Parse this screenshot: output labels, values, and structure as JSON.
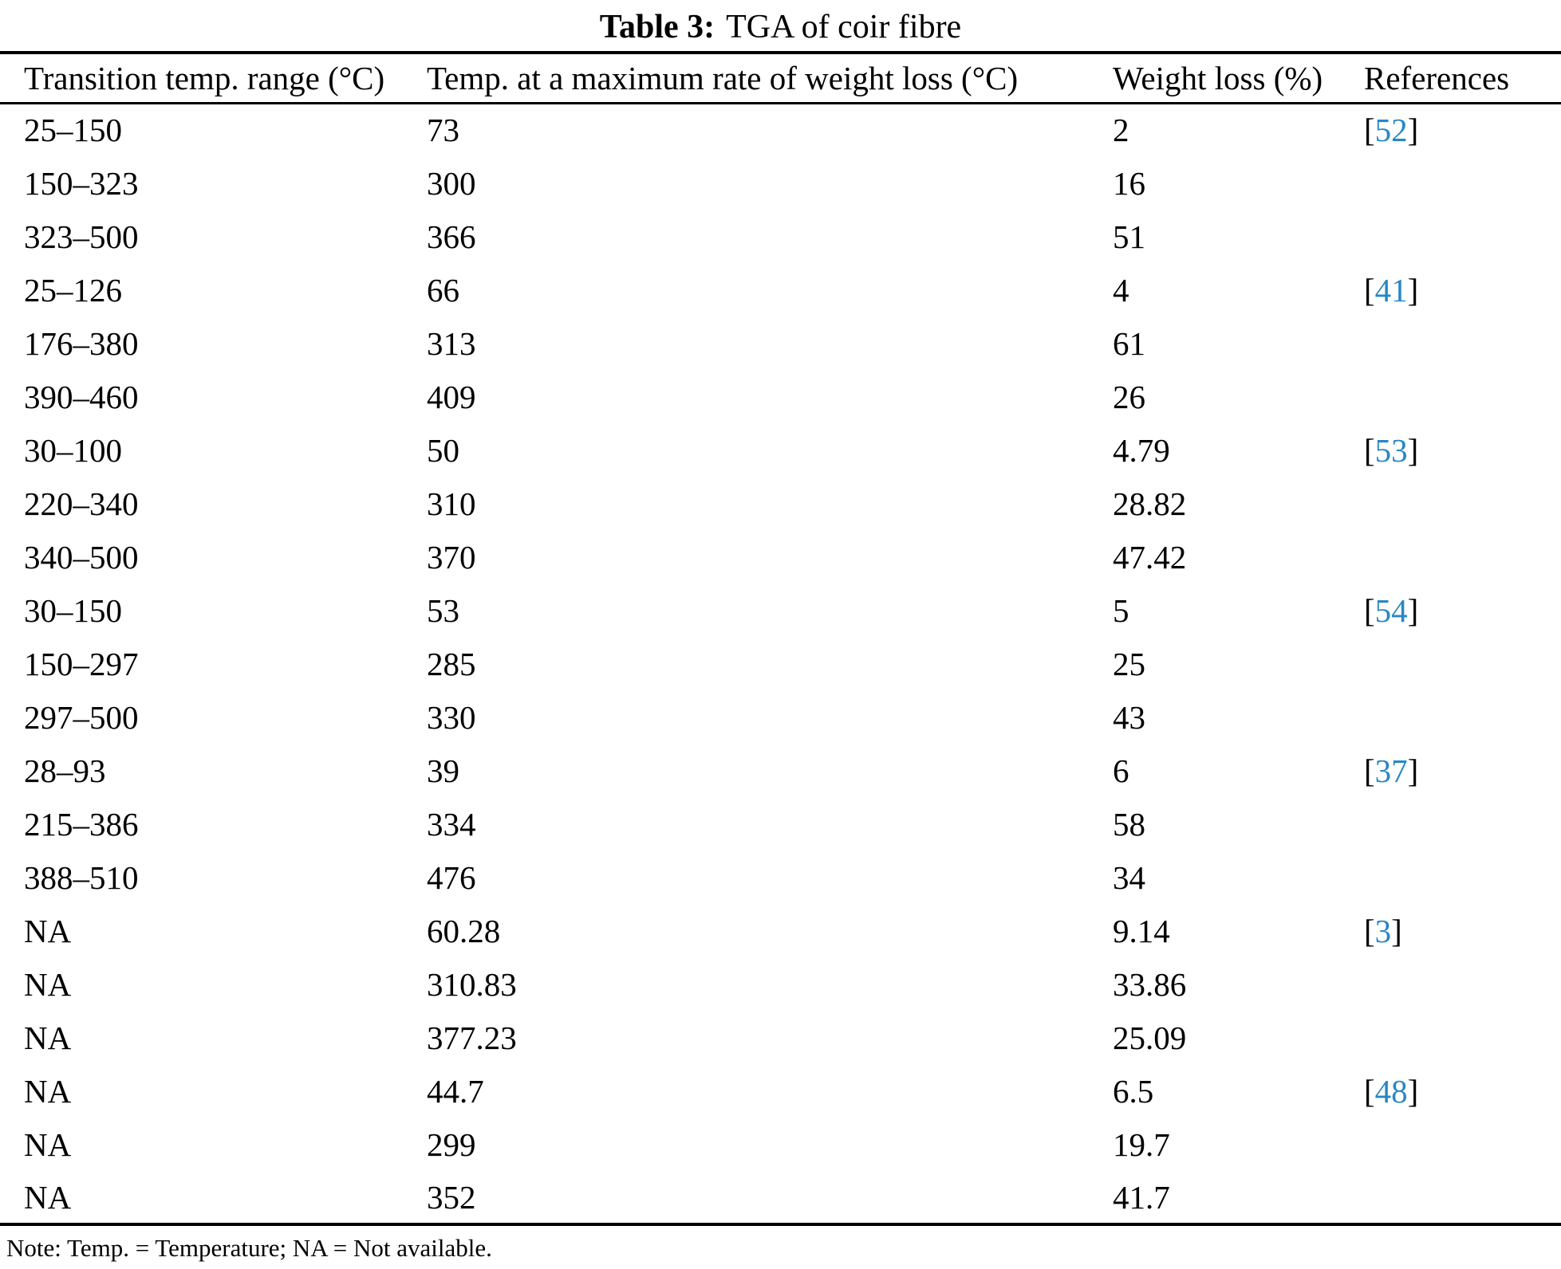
{
  "caption": {
    "label": "Table 3:",
    "text": "TGA of coir fibre"
  },
  "table": {
    "columns": [
      "Transition temp. range (°C)",
      "Temp. at a maximum rate of weight loss (°C)",
      "Weight loss (%)",
      "References"
    ],
    "reference_format": {
      "open": "[",
      "close": "]"
    },
    "rows": [
      {
        "transition_range": "25–150",
        "temp_max": "73",
        "weight_loss": "2",
        "reference": "52"
      },
      {
        "transition_range": "150–323",
        "temp_max": "300",
        "weight_loss": "16",
        "reference": ""
      },
      {
        "transition_range": "323–500",
        "temp_max": "366",
        "weight_loss": "51",
        "reference": ""
      },
      {
        "transition_range": "25–126",
        "temp_max": "66",
        "weight_loss": "4",
        "reference": "41"
      },
      {
        "transition_range": "176–380",
        "temp_max": "313",
        "weight_loss": "61",
        "reference": ""
      },
      {
        "transition_range": "390–460",
        "temp_max": "409",
        "weight_loss": "26",
        "reference": ""
      },
      {
        "transition_range": "30–100",
        "temp_max": "50",
        "weight_loss": "4.79",
        "reference": "53"
      },
      {
        "transition_range": "220–340",
        "temp_max": "310",
        "weight_loss": "28.82",
        "reference": ""
      },
      {
        "transition_range": "340–500",
        "temp_max": "370",
        "weight_loss": "47.42",
        "reference": ""
      },
      {
        "transition_range": "30–150",
        "temp_max": "53",
        "weight_loss": "5",
        "reference": "54"
      },
      {
        "transition_range": "150–297",
        "temp_max": "285",
        "weight_loss": "25",
        "reference": ""
      },
      {
        "transition_range": "297–500",
        "temp_max": "330",
        "weight_loss": "43",
        "reference": ""
      },
      {
        "transition_range": "28–93",
        "temp_max": "39",
        "weight_loss": "6",
        "reference": "37"
      },
      {
        "transition_range": "215–386",
        "temp_max": "334",
        "weight_loss": "58",
        "reference": ""
      },
      {
        "transition_range": "388–510",
        "temp_max": "476",
        "weight_loss": "34",
        "reference": ""
      },
      {
        "transition_range": "NA",
        "temp_max": "60.28",
        "weight_loss": "9.14",
        "reference": "3"
      },
      {
        "transition_range": "NA",
        "temp_max": "310.83",
        "weight_loss": "33.86",
        "reference": ""
      },
      {
        "transition_range": "NA",
        "temp_max": "377.23",
        "weight_loss": "25.09",
        "reference": ""
      },
      {
        "transition_range": "NA",
        "temp_max": "44.7",
        "weight_loss": "6.5",
        "reference": "48"
      },
      {
        "transition_range": "NA",
        "temp_max": "299",
        "weight_loss": "19.7",
        "reference": ""
      },
      {
        "transition_range": "NA",
        "temp_max": "352",
        "weight_loss": "41.7",
        "reference": ""
      }
    ]
  },
  "note": "Note: Temp. = Temperature; NA = Not available.",
  "colors": {
    "text": "#000000",
    "reference_accent": "#2787c5"
  }
}
